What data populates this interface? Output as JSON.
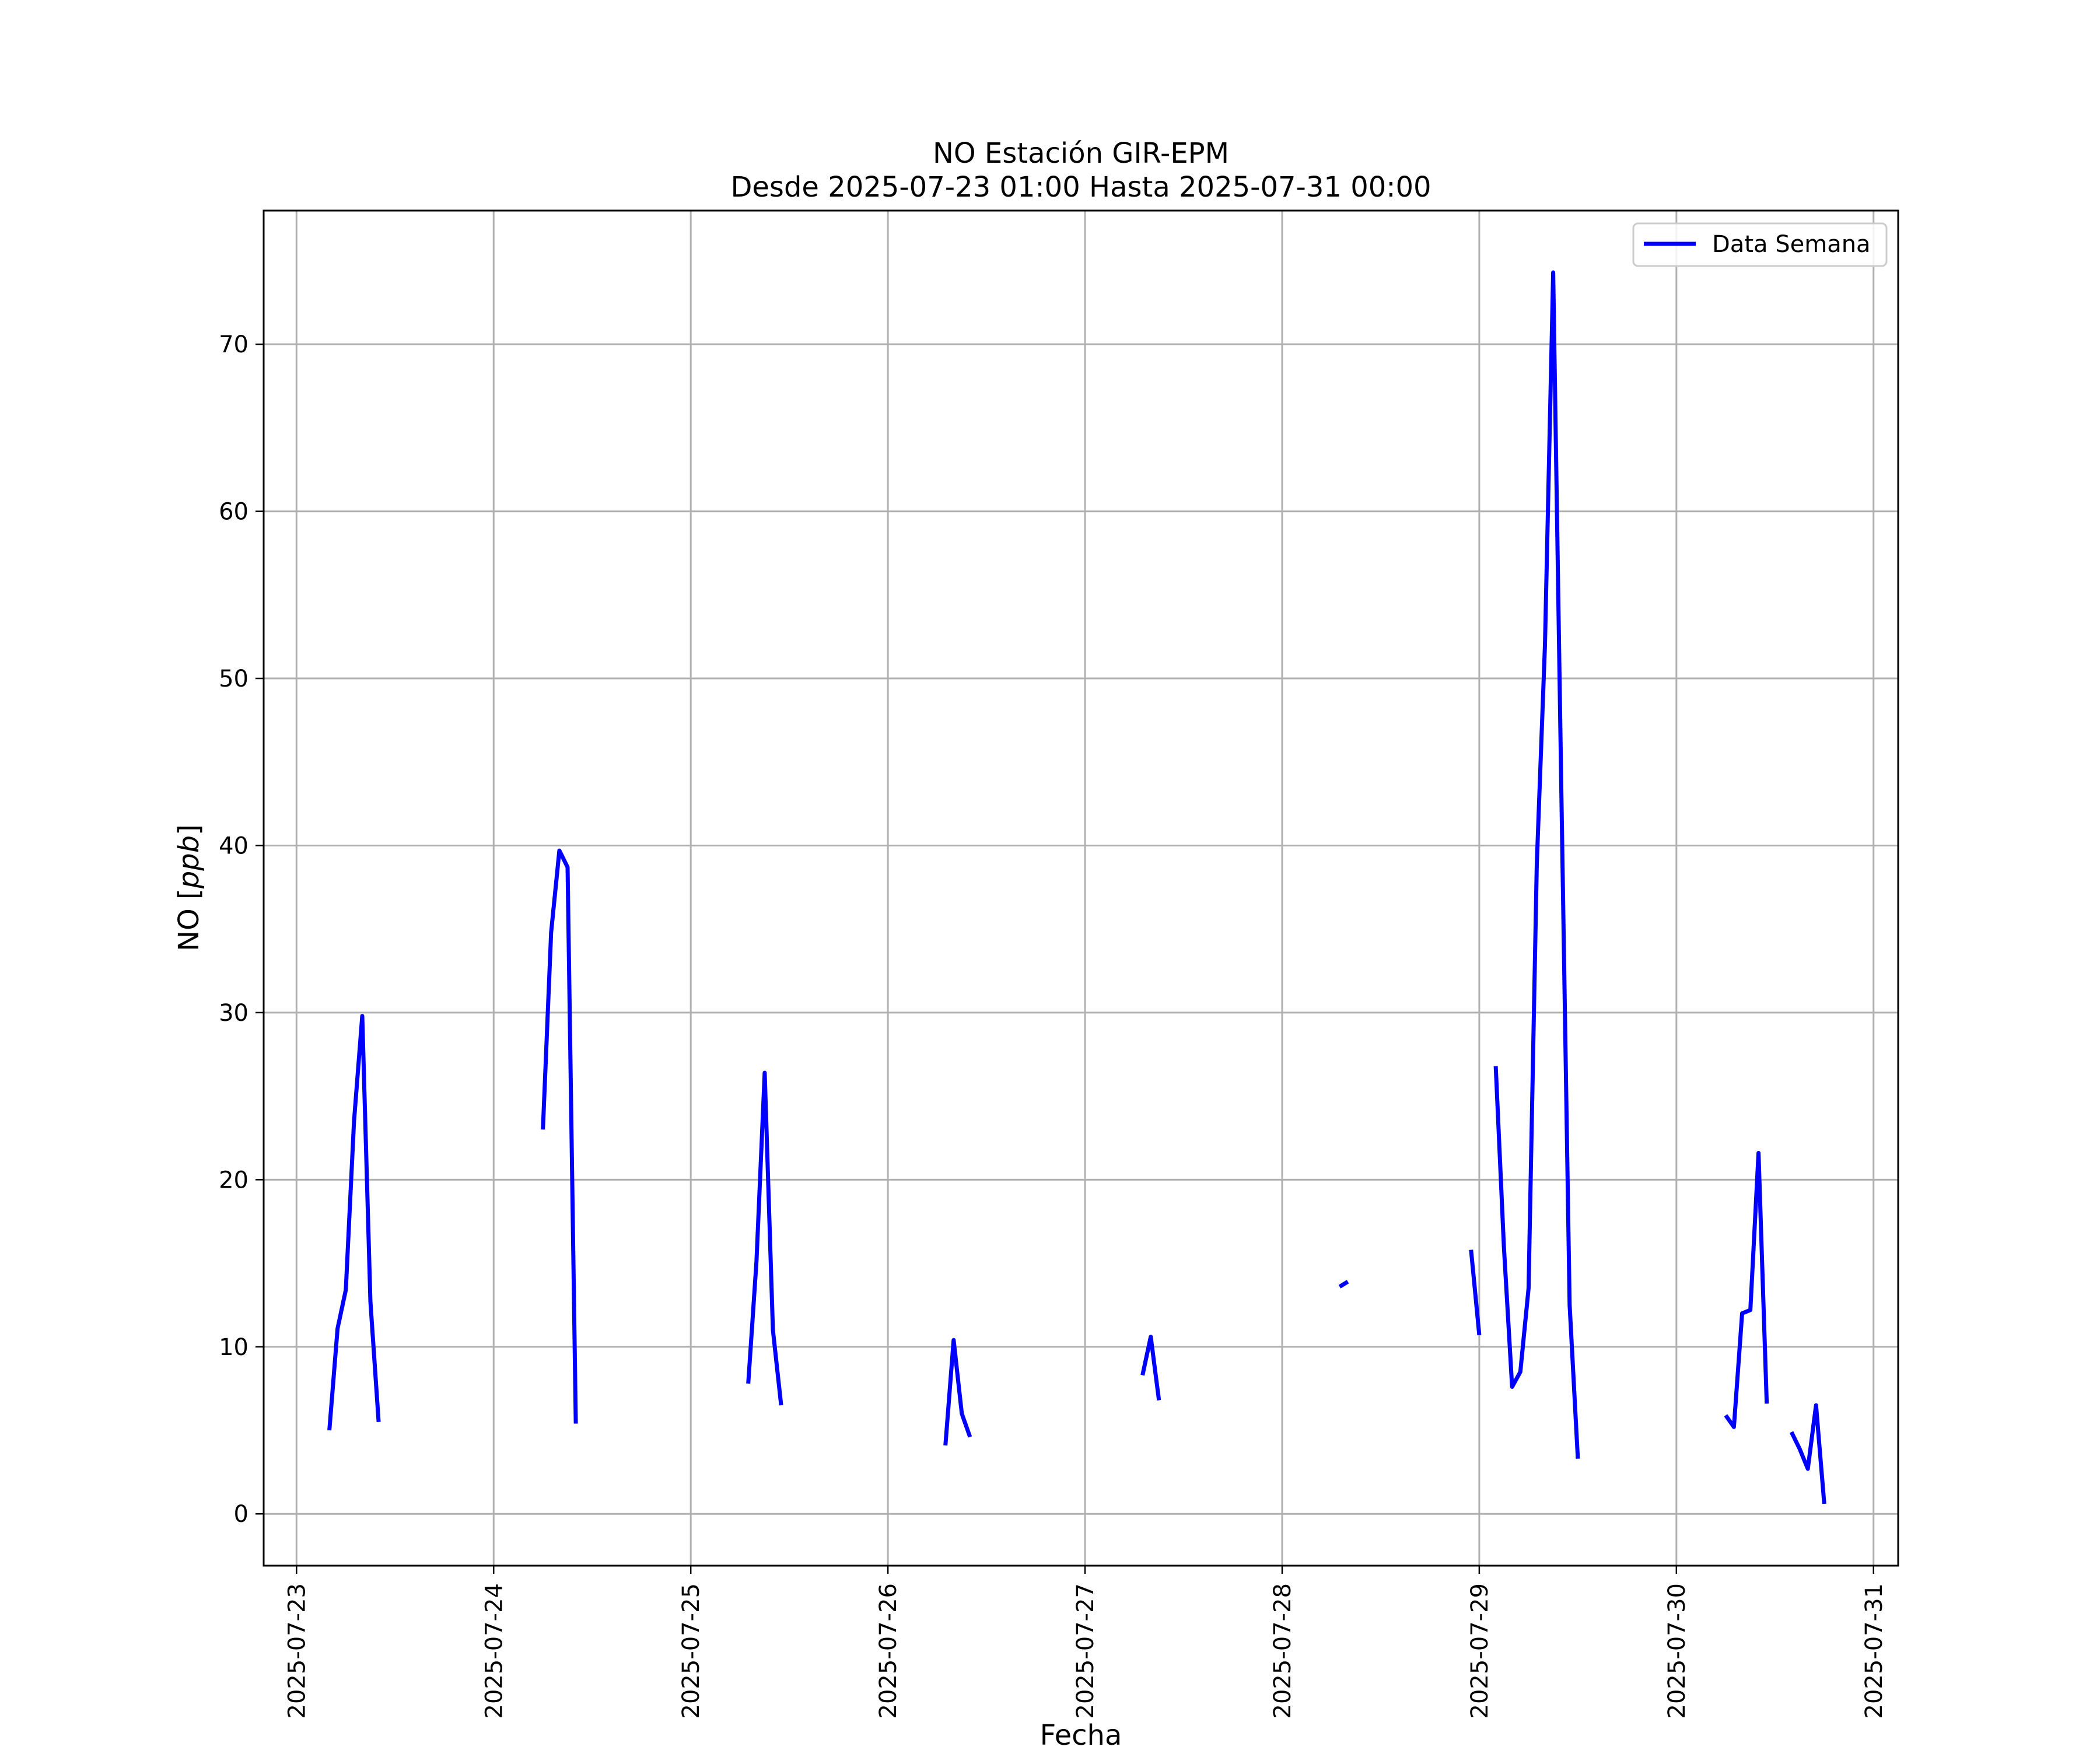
{
  "chart_data": {
    "type": "line",
    "title": "NO Estación GIR-EPM",
    "subtitle": "Desde 2025-07-23 01:00 Hasta 2025-07-31 00:00",
    "xlabel": "Fecha",
    "ylabel_text": "NO [",
    "ylabel_unit": "ppb",
    "ylabel_close": "]",
    "x_ticks": [
      "2025-07-23",
      "2025-07-24",
      "2025-07-25",
      "2025-07-26",
      "2025-07-27",
      "2025-07-28",
      "2025-07-29",
      "2025-07-30",
      "2025-07-31"
    ],
    "y_ticks": [
      0,
      10,
      20,
      30,
      40,
      50,
      60,
      70
    ],
    "xlim": [
      "2025-07-22 20:00",
      "2025-07-31 03:00"
    ],
    "ylim": [
      -3.1,
      78
    ],
    "grid": true,
    "legend_position": "top-right",
    "series": [
      {
        "name": "Data Semana",
        "color": "#0000ff",
        "segments": [
          [
            [
              "2025-07-23 04:00",
              5.0
            ],
            [
              "2025-07-23 05:00",
              11.1
            ],
            [
              "2025-07-23 06:00",
              13.4
            ],
            [
              "2025-07-23 07:00",
              23.5
            ],
            [
              "2025-07-23 08:00",
              29.8
            ],
            [
              "2025-07-23 09:00",
              12.7
            ],
            [
              "2025-07-23 10:00",
              5.5
            ]
          ],
          [
            [
              "2025-07-24 06:00",
              23.0
            ],
            [
              "2025-07-24 07:00",
              34.8
            ],
            [
              "2025-07-24 08:00",
              39.7
            ],
            [
              "2025-07-24 09:00",
              38.7
            ],
            [
              "2025-07-24 10:00",
              5.4
            ]
          ],
          [
            [
              "2025-07-25 07:00",
              7.8
            ],
            [
              "2025-07-25 08:00",
              15.1
            ],
            [
              "2025-07-25 09:00",
              26.4
            ],
            [
              "2025-07-25 10:00",
              11.0
            ],
            [
              "2025-07-25 11:00",
              6.5
            ]
          ],
          [
            [
              "2025-07-26 07:00",
              4.1
            ],
            [
              "2025-07-26 08:00",
              10.4
            ],
            [
              "2025-07-26 09:00",
              6.0
            ],
            [
              "2025-07-26 10:00",
              4.6
            ]
          ],
          [
            [
              "2025-07-27 07:00",
              8.3
            ],
            [
              "2025-07-27 08:00",
              10.6
            ],
            [
              "2025-07-27 09:00",
              6.8
            ]
          ],
          [
            [
              "2025-07-28 07:00",
              13.6
            ],
            [
              "2025-07-28 08:00",
              13.9
            ]
          ],
          [
            [
              "2025-07-28 23:00",
              15.8
            ],
            [
              "2025-07-29 00:00",
              10.7
            ]
          ],
          [
            [
              "2025-07-29 02:00",
              26.8
            ],
            [
              "2025-07-29 03:00",
              16.0
            ],
            [
              "2025-07-29 04:00",
              7.6
            ],
            [
              "2025-07-29 05:00",
              8.5
            ],
            [
              "2025-07-29 06:00",
              13.5
            ],
            [
              "2025-07-29 07:00",
              38.9
            ],
            [
              "2025-07-29 08:00",
              52.0
            ],
            [
              "2025-07-29 09:00",
              74.3
            ],
            [
              "2025-07-29 10:00",
              43.0
            ],
            [
              "2025-07-29 11:00",
              12.5
            ],
            [
              "2025-07-29 12:00",
              3.3
            ]
          ],
          [
            [
              "2025-07-30 06:00",
              5.9
            ],
            [
              "2025-07-30 07:00",
              5.2
            ],
            [
              "2025-07-30 08:00",
              12.0
            ],
            [
              "2025-07-30 09:00",
              12.2
            ],
            [
              "2025-07-30 10:00",
              21.6
            ],
            [
              "2025-07-30 11:00",
              6.6
            ]
          ],
          [
            [
              "2025-07-30 14:00",
              4.9
            ],
            [
              "2025-07-30 15:00",
              3.9
            ],
            [
              "2025-07-30 16:00",
              2.7
            ],
            [
              "2025-07-30 17:00",
              6.5
            ],
            [
              "2025-07-30 18:00",
              0.6
            ]
          ]
        ]
      }
    ]
  }
}
